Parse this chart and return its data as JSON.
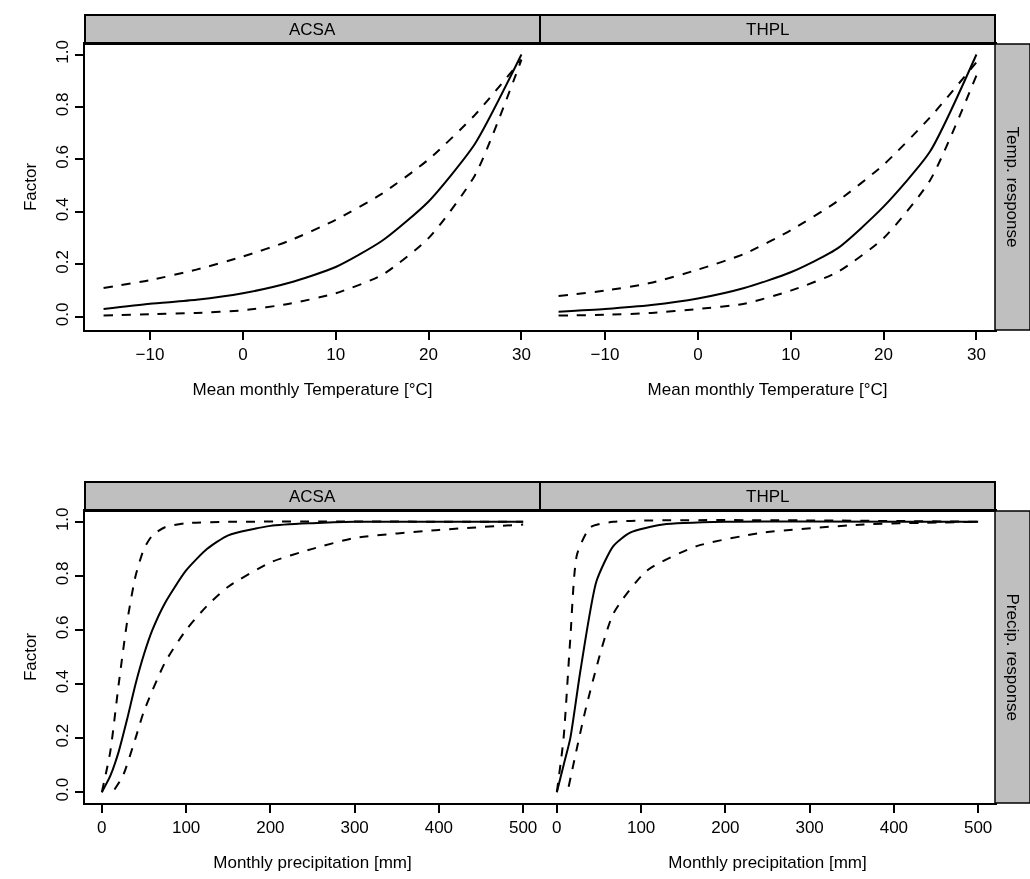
{
  "chart_data": [
    {
      "type": "line",
      "title": "ACSA",
      "xlabel": "Mean monthly Temperature [°C]",
      "ylabel": "Factor",
      "xlim": [
        -17,
        32
      ],
      "ylim": [
        -0.05,
        1.04
      ],
      "xticks": [
        {
          "value": -10,
          "label": "−10"
        },
        0,
        10,
        20,
        30
      ],
      "yticks": [
        {
          "value": 0,
          "label": "0.0"
        },
        {
          "value": 0.2,
          "label": "0.2"
        },
        {
          "value": 0.4,
          "label": "0.4"
        },
        {
          "value": 0.6,
          "label": "0.6"
        },
        {
          "value": 0.8,
          "label": "0.8"
        },
        {
          "value": 1,
          "label": "1.0"
        }
      ],
      "grid": false,
      "x": [
        -15,
        -10,
        -5,
        0,
        5,
        10,
        15,
        20,
        25,
        30
      ],
      "series": [
        {
          "color": "#000000",
          "line_style": "solid",
          "values": [
            0.03,
            0.05,
            0.065,
            0.09,
            0.13,
            0.19,
            0.29,
            0.44,
            0.66,
            1.0
          ]
        },
        {
          "color": "#000000",
          "line_style": "dashed",
          "values": [
            0.11,
            0.14,
            0.18,
            0.23,
            0.29,
            0.37,
            0.47,
            0.6,
            0.77,
            0.98
          ]
        },
        {
          "color": "#000000",
          "line_style": "dashed",
          "values": [
            0.005,
            0.01,
            0.015,
            0.025,
            0.05,
            0.09,
            0.16,
            0.3,
            0.54,
            0.98
          ]
        }
      ]
    },
    {
      "type": "line",
      "title": "THPL",
      "xlabel": "Mean monthly Temperature [°C]",
      "annotations": [
        "Temp. response"
      ],
      "xlim": [
        -17,
        32
      ],
      "ylim": [
        -0.05,
        1.04
      ],
      "xticks": [
        {
          "value": -10,
          "label": "−10"
        },
        0,
        10,
        20,
        30
      ],
      "tick_labels": "x",
      "grid": false,
      "x": [
        -15,
        -10,
        -5,
        0,
        5,
        10,
        15,
        20,
        25,
        30
      ],
      "series": [
        {
          "color": "#000000",
          "line_style": "solid",
          "values": [
            0.02,
            0.03,
            0.045,
            0.07,
            0.11,
            0.17,
            0.26,
            0.42,
            0.63,
            1.0
          ]
        },
        {
          "color": "#000000",
          "line_style": "dashed",
          "values": [
            0.08,
            0.1,
            0.13,
            0.18,
            0.24,
            0.33,
            0.44,
            0.58,
            0.76,
            0.97
          ]
        },
        {
          "color": "#000000",
          "line_style": "dashed",
          "values": [
            0.005,
            0.008,
            0.015,
            0.03,
            0.05,
            0.1,
            0.17,
            0.3,
            0.52,
            0.92
          ]
        }
      ]
    },
    {
      "type": "line",
      "title": "ACSA",
      "xlabel": "Monthly precipitation [mm]",
      "ylabel": "Factor",
      "xlim": [
        -20,
        520
      ],
      "ylim": [
        -0.04,
        1.04
      ],
      "xticks": [
        0,
        100,
        200,
        300,
        400,
        500
      ],
      "yticks": [
        {
          "value": 0,
          "label": "0.0"
        },
        {
          "value": 0.2,
          "label": "0.2"
        },
        {
          "value": 0.4,
          "label": "0.4"
        },
        {
          "value": 0.6,
          "label": "0.6"
        },
        {
          "value": 0.8,
          "label": "0.8"
        },
        {
          "value": 1,
          "label": "1.0"
        }
      ],
      "grid": false,
      "series": [
        {
          "color": "#000000",
          "line_style": "solid",
          "x": [
            0,
            10,
            20,
            30,
            40,
            50,
            60,
            75,
            100,
            125,
            150,
            200,
            250,
            300,
            500
          ],
          "values": [
            0,
            0.06,
            0.15,
            0.27,
            0.4,
            0.51,
            0.6,
            0.7,
            0.82,
            0.9,
            0.95,
            0.985,
            0.995,
            1.0,
            1.0
          ]
        },
        {
          "color": "#000000",
          "line_style": "dashed",
          "x": [
            0,
            10,
            20,
            30,
            40,
            50,
            60,
            75,
            100,
            150,
            500
          ],
          "values": [
            0,
            0.15,
            0.4,
            0.63,
            0.8,
            0.9,
            0.95,
            0.98,
            0.995,
            1.0,
            1.0
          ]
        },
        {
          "color": "#000000",
          "line_style": "dashed",
          "x": [
            15,
            25,
            40,
            50,
            75,
            100,
            125,
            150,
            200,
            250,
            300,
            400,
            500
          ],
          "values": [
            0.01,
            0.06,
            0.2,
            0.3,
            0.48,
            0.6,
            0.69,
            0.76,
            0.85,
            0.9,
            0.94,
            0.97,
            0.99
          ]
        }
      ]
    },
    {
      "type": "line",
      "title": "THPL",
      "xlabel": "Monthly precipitation [mm]",
      "annotations": [
        "Precip. response"
      ],
      "xlim": [
        -20,
        520
      ],
      "ylim": [
        -0.04,
        1.04
      ],
      "xticks": [
        0,
        100,
        200,
        300,
        400,
        500
      ],
      "tick_labels": "x",
      "grid": false,
      "series": [
        {
          "color": "#000000",
          "line_style": "solid",
          "x": [
            0,
            8,
            16,
            28,
            47,
            67,
            87,
            126,
            200,
            500
          ],
          "values": [
            0,
            0.1,
            0.2,
            0.45,
            0.78,
            0.91,
            0.96,
            0.99,
            1.0,
            1.0
          ]
        },
        {
          "color": "#000000",
          "line_style": "dashed",
          "x": [
            0,
            8,
            16,
            24,
            40,
            67,
            500
          ],
          "values": [
            0,
            0.2,
            0.57,
            0.88,
            0.98,
            1.0,
            1.0
          ]
        },
        {
          "color": "#000000",
          "line_style": "dashed",
          "x": [
            14,
            36,
            67,
            107,
            166,
            245,
            364,
            500
          ],
          "values": [
            0.02,
            0.33,
            0.66,
            0.82,
            0.91,
            0.96,
            0.99,
            1.0
          ]
        }
      ]
    }
  ]
}
